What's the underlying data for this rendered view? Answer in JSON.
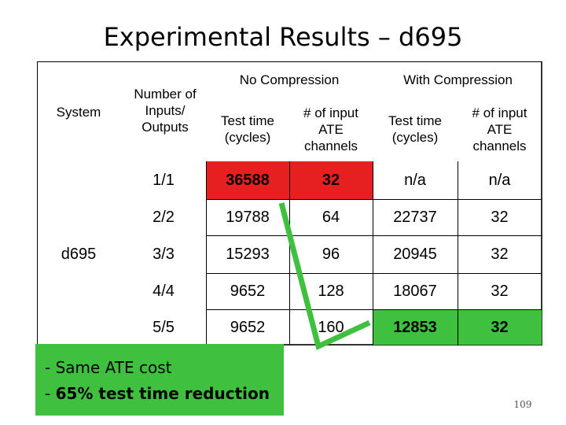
{
  "title": "Experimental Results – d695",
  "table": {
    "header": {
      "system": "System",
      "io": "Number of Inputs/ Outputs",
      "no_compression": "No Compression",
      "with_compression": "With Compression",
      "test_time": "Test time (cycles)",
      "ate_channels": "# of input ATE channels"
    },
    "system_value": "d695",
    "rows": [
      {
        "io": "1/1",
        "nc_time": "36588",
        "nc_ch": "32",
        "wc_time": "n/a",
        "wc_ch": "n/a"
      },
      {
        "io": "2/2",
        "nc_time": "19788",
        "nc_ch": "64",
        "wc_time": "22737",
        "wc_ch": "32"
      },
      {
        "io": "3/3",
        "nc_time": "15293",
        "nc_ch": "96",
        "wc_time": "20945",
        "wc_ch": "32"
      },
      {
        "io": "4/4",
        "nc_time": "9652",
        "nc_ch": "128",
        "wc_time": "18067",
        "wc_ch": "32"
      },
      {
        "io": "5/5",
        "nc_time": "9652",
        "nc_ch": "160",
        "wc_time": "12853",
        "wc_ch": "32"
      }
    ],
    "highlight_colors": {
      "red": "#e62020",
      "green": "#3fc13f"
    }
  },
  "callout": {
    "line1": "- Same ATE cost",
    "line2_prefix": "- ",
    "line2_bold": "65% test time reduction"
  },
  "page_number": "109"
}
